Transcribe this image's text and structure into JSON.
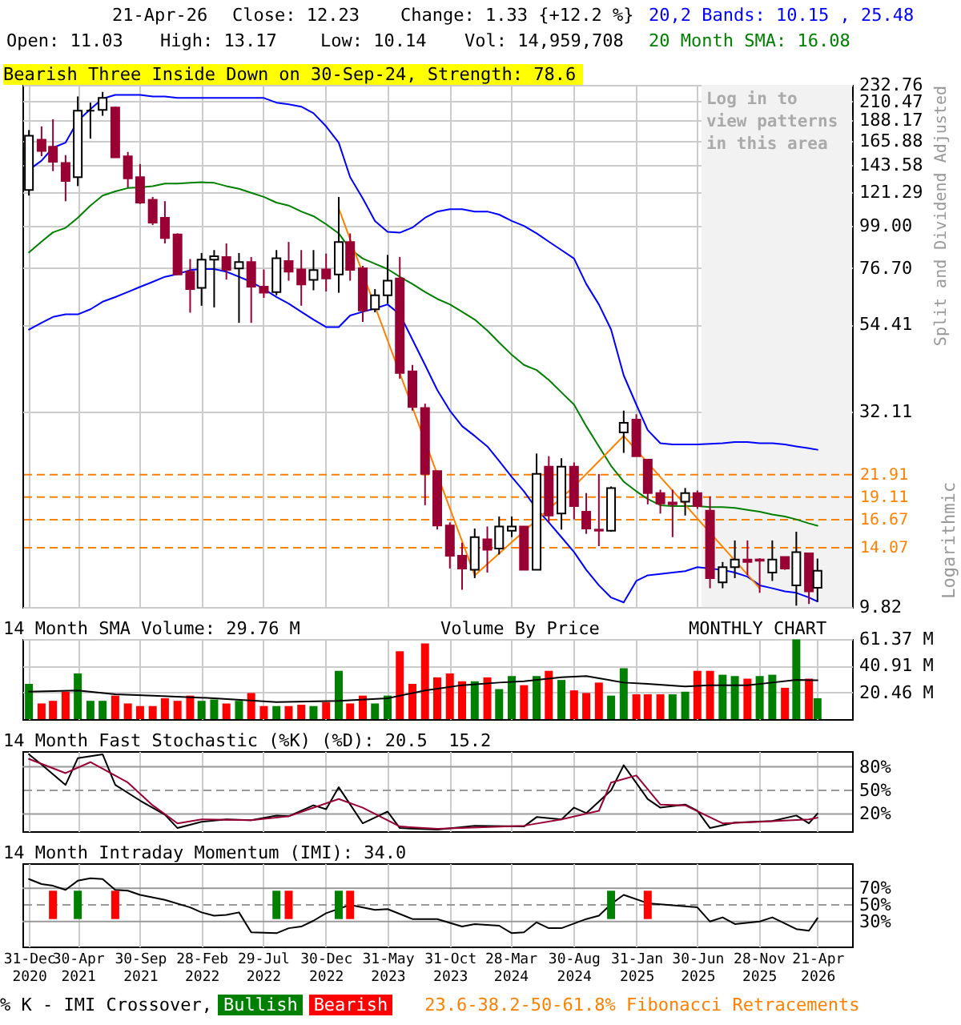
{
  "chart_data": [
    {
      "type": "candlestick",
      "title": "Bearish Three Inside Down on 30-Sep-24, Strength: 78.6",
      "ylabel": "Split and Dividend Adjusted",
      "annotations": [
        "21-Apr-26",
        "Close: 12.23",
        "Change: 1.33 {+12.2 %}",
        "Open: 11.03",
        "High: 13.17",
        "Low: 10.14",
        "Vol: 14,959,708",
        "Logarithmic",
        "23.6-38.2-50-61.8% Fibonacci Retracements"
      ],
      "x": [
        "2020-12-31",
        "2021-01-31",
        "2021-02-28",
        "2021-03-31",
        "2021-04-30",
        "2021-05-31",
        "2021-06-30",
        "2021-07-31",
        "2021-08-31",
        "2021-09-30",
        "2021-10-31",
        "2021-11-30",
        "2021-12-31",
        "2022-01-31",
        "2022-02-28",
        "2022-03-31",
        "2022-04-30",
        "2022-05-31",
        "2022-06-30",
        "2022-07-31",
        "2022-08-31",
        "2022-09-30",
        "2022-10-31",
        "2022-11-30",
        "2022-12-31",
        "2023-01-31",
        "2023-02-28",
        "2023-03-31",
        "2023-04-30",
        "2023-05-31",
        "2023-06-30",
        "2023-07-31",
        "2023-08-31",
        "2023-09-30",
        "2023-10-31",
        "2023-11-30",
        "2023-12-31",
        "2024-01-31",
        "2024-02-29",
        "2024-03-31",
        "2024-04-30",
        "2024-05-31",
        "2024-06-30",
        "2024-07-31",
        "2024-08-31",
        "2024-09-30",
        "2024-10-31",
        "2024-11-30",
        "2024-12-31",
        "2025-01-31",
        "2025-02-28",
        "2025-03-31",
        "2025-04-30",
        "2025-05-31",
        "2025-06-30",
        "2025-07-31",
        "2025-08-31",
        "2025-09-30",
        "2025-10-31",
        "2025-11-30",
        "2025-12-31",
        "2026-01-31",
        "2026-02-28",
        "2026-03-31",
        "2026-04-21"
      ],
      "ohlc": [
        [
          123,
          177,
          119,
          171
        ],
        [
          167,
          181,
          151,
          156
        ],
        [
          160,
          189,
          138,
          146
        ],
        [
          145,
          152,
          115,
          130
        ],
        [
          133,
          217,
          126,
          199
        ],
        [
          199,
          209,
          168,
          199
        ],
        [
          200,
          223,
          193,
          215
        ],
        [
          203,
          204,
          150,
          150
        ],
        [
          151,
          155,
          125,
          132
        ],
        [
          133,
          144,
          113,
          114
        ],
        [
          116,
          118,
          99.5,
          101
        ],
        [
          104,
          115,
          89,
          92
        ],
        [
          94,
          94.6,
          73.7,
          73.7
        ],
        [
          75,
          81,
          58.5,
          67.5
        ],
        [
          68,
          84,
          61,
          80.7
        ],
        [
          80.7,
          85.5,
          60.4,
          82.4
        ],
        [
          82,
          89,
          71.5,
          75.8
        ],
        [
          76.5,
          84,
          55,
          79.5
        ],
        [
          79.5,
          82,
          55,
          68.5
        ],
        [
          68.5,
          76,
          64,
          66
        ],
        [
          66.3,
          85.5,
          65,
          81.4
        ],
        [
          80,
          89.8,
          71,
          75
        ],
        [
          76,
          85.5,
          61,
          69.4
        ],
        [
          71.4,
          85.5,
          67,
          75.7
        ],
        [
          76,
          83.7,
          66.5,
          72
        ],
        [
          73.7,
          118,
          66,
          89.8
        ],
        [
          89.8,
          94.6,
          71,
          75.8
        ],
        [
          76.6,
          77.7,
          55.3,
          59.3
        ],
        [
          59.7,
          67.5,
          58.6,
          65
        ],
        [
          65,
          83,
          61.8,
          71
        ],
        [
          72,
          82,
          39.2,
          40.6
        ],
        [
          41,
          42.6,
          32.3,
          33
        ],
        [
          32.8,
          33.7,
          18.2,
          22
        ],
        [
          22.4,
          22.4,
          15.7,
          16.1
        ],
        [
          16.1,
          16.4,
          12.4,
          13.4
        ],
        [
          13.4,
          14.5,
          10.9,
          12.4
        ],
        [
          12.3,
          15.8,
          11.7,
          15.0
        ],
        [
          14.8,
          16.0,
          12.1,
          13.9
        ],
        [
          14.0,
          17.0,
          13.5,
          16.0
        ],
        [
          15.6,
          17.0,
          15.0,
          16.0
        ],
        [
          16.0,
          16.0,
          12.3,
          12.3
        ],
        [
          12.3,
          24.9,
          12.3,
          22.0
        ],
        [
          23.0,
          24.5,
          16.4,
          17.1
        ],
        [
          17.3,
          24.2,
          15.7,
          23.0
        ],
        [
          23.0,
          23.6,
          16.7,
          18.1
        ],
        [
          17.5,
          19.6,
          15.3,
          15.8
        ],
        [
          15.7,
          22.0,
          14.2,
          15.6
        ],
        [
          15.6,
          20.4,
          15.5,
          20.2
        ],
        [
          28.3,
          32.3,
          25.0,
          30.0
        ],
        [
          30.6,
          31.6,
          24.5,
          24.5
        ],
        [
          24.0,
          24.0,
          18.3,
          19.6
        ],
        [
          19.6,
          20.0,
          17.3,
          18.4
        ],
        [
          18.5,
          20.0,
          15.0,
          18.3
        ],
        [
          18.6,
          20.2,
          17.1,
          19.6
        ],
        [
          19.6,
          19.9,
          17.8,
          18.1
        ],
        [
          17.6,
          19.2,
          11.0,
          11.7
        ],
        [
          11.4,
          12.9,
          11.0,
          12.5
        ],
        [
          12.5,
          14.7,
          11.7,
          13.1
        ],
        [
          13.1,
          14.7,
          11.9,
          12.9
        ],
        [
          13.1,
          13.2,
          10.7,
          13.0
        ],
        [
          12.1,
          14.7,
          11.5,
          13.1
        ],
        [
          13.3,
          13.3,
          12.3,
          12.4
        ],
        [
          11.2,
          15.5,
          9.9,
          13.7
        ],
        [
          13.6,
          13.6,
          10.0,
          10.8
        ],
        [
          11.03,
          13.17,
          10.14,
          12.23
        ]
      ],
      "series": [
        {
          "name": "20,2 Bands: 10.15 , 25.48",
          "type": "line",
          "color": "#0000ff",
          "values": [
            139,
            147,
            159,
            164,
            187,
            201,
            214,
            219,
            219,
            219,
            217,
            217,
            215,
            215,
            215,
            215,
            215,
            215,
            215,
            215,
            209,
            207,
            204,
            196,
            181,
            164,
            133,
            117,
            102,
            95.5,
            95,
            98,
            104,
            108,
            109.5,
            109.5,
            108,
            108,
            106,
            102,
            99,
            94.6,
            90,
            85.5,
            81.2,
            69.6,
            61.5,
            52.8,
            40,
            33.5,
            28.7,
            26.5,
            26.3,
            26.3,
            26.3,
            26.4,
            26.5,
            26.7,
            26.7,
            26.5,
            26.5,
            26.3,
            26.0,
            25.7,
            25.48
          ]
        },
        {
          "type": "line",
          "color": "#0000ff",
          "values": [
            52.8,
            55.0,
            57.0,
            57.9,
            57.9,
            59.7,
            62.5,
            64.3,
            66.3,
            68.4,
            70.5,
            72.7,
            73.9,
            75.7,
            76.2,
            76.2,
            75.0,
            72.7,
            70.5,
            67.5,
            64.3,
            61.8,
            58.8,
            56.1,
            53.6,
            53.6,
            57.5,
            58.8,
            60.0,
            61.5,
            57.9,
            49.7,
            42.6,
            36.6,
            32.3,
            29.4,
            27.7,
            26.0,
            23.8,
            21.6,
            19.8,
            17.8,
            16.4,
            15.0,
            13.7,
            12.3,
            11.2,
            10.4,
            10.1,
            11.5,
            11.9,
            12.0,
            12.1,
            12.2,
            12.5,
            12.4,
            12.3,
            12.1,
            11.8,
            11.2,
            11.0,
            10.8,
            10.7,
            10.4,
            10.15
          ]
        },
        {
          "name": "20 Month SMA: 16.08",
          "type": "line",
          "color": "#008000",
          "values": [
            84.3,
            90.0,
            95.2,
            97.8,
            104,
            112,
            119,
            122,
            124.5,
            125,
            126,
            128,
            128,
            128.5,
            129,
            128.5,
            126,
            124,
            121,
            118,
            114,
            112,
            108,
            105,
            100,
            94.6,
            86,
            81.2,
            78.7,
            76.2,
            72.7,
            69.6,
            66.3,
            63.6,
            61.5,
            58.8,
            56.1,
            52.5,
            48.8,
            45.3,
            42.6,
            41.3,
            38.9,
            36.1,
            33.5,
            29.4,
            26.0,
            23.1,
            21.0,
            19.8,
            18.9,
            18.2,
            18.1,
            18.1,
            18.1,
            18.0,
            18.0,
            17.9,
            17.7,
            17.5,
            17.2,
            17.0,
            16.7,
            16.3,
            16.08
          ]
        },
        {
          "type": "line",
          "color": "#ff8000",
          "x": [
            "2023-01-31",
            "2023-12-31",
            "2024-08-31",
            "2024-12-31",
            "2025-11-30"
          ],
          "values": [
            110,
            11.9,
            20.4,
            27.7,
            11.0
          ]
        }
      ],
      "log": true,
      "xlim": [
        "2020-12-15",
        "2026-07-15"
      ],
      "xticks": [
        {
          "value": "2020-12-31",
          "label": null
        },
        {
          "value": "2021-04-30",
          "label": null
        },
        {
          "value": "2021-09-30",
          "label": null
        },
        {
          "value": "2022-02-28",
          "label": null
        },
        {
          "value": "2022-07-29",
          "label": null
        },
        {
          "value": "2022-12-30",
          "label": null
        },
        {
          "value": "2023-05-31",
          "label": null
        },
        {
          "value": "2023-10-31",
          "label": null
        },
        {
          "value": "2024-03-28",
          "label": null
        },
        {
          "value": "2024-08-30",
          "label": null
        },
        {
          "value": "2025-01-31",
          "label": null
        },
        {
          "value": "2025-06-30",
          "label": null
        },
        {
          "value": "2025-11-28",
          "label": null
        },
        {
          "value": "2026-04-21",
          "label": null
        }
      ],
      "ylim": [
        9.82,
        232.76
      ],
      "yticks": [
        9.82,
        32.11,
        54.41,
        {
          "value": 76.7,
          "label": "76.70"
        },
        {
          "value": 99,
          "label": "99.00"
        },
        121.29,
        143.58,
        165.88,
        188.17,
        210.47,
        232.76
      ],
      "grid": true,
      "tick_labels": "y",
      "legend": "top right",
      "ref_lines": [
        {
          "axis": "y",
          "value": 21.91,
          "label": "21.91",
          "color": "#ff8000",
          "line_style": "dashed"
        },
        {
          "axis": "y",
          "value": 19.11,
          "label": "19.11",
          "color": "#ff8000",
          "line_style": "dashed"
        },
        {
          "axis": "y",
          "value": 16.67,
          "label": "16.67",
          "color": "#ff8000",
          "line_style": "dashed"
        },
        {
          "axis": "y",
          "value": 14.07,
          "label": "14.07",
          "color": "#ff8000",
          "line_style": "dashed"
        }
      ],
      "bands": [
        {
          "axis": "x",
          "from": "2025-07-10",
          "to": "2026-07-15",
          "label": "Log in to view patterns in this area",
          "color": "#f2f2f2"
        }
      ]
    },
    {
      "type": "bar",
      "title": "14 Month SMA Volume: 29.76 M",
      "annotations": [
        "Volume By Price",
        "MONTHLY CHART"
      ],
      "x": [
        "2020-12-31",
        "2021-01-31",
        "2021-02-28",
        "2021-03-31",
        "2021-04-30",
        "2021-05-31",
        "2021-06-30",
        "2021-07-31",
        "2021-08-31",
        "2021-09-30",
        "2021-10-31",
        "2021-11-30",
        "2021-12-31",
        "2022-01-31",
        "2022-02-28",
        "2022-03-31",
        "2022-04-30",
        "2022-05-31",
        "2022-06-30",
        "2022-07-31",
        "2022-08-31",
        "2022-09-30",
        "2022-10-31",
        "2022-11-30",
        "2022-12-31",
        "2023-01-31",
        "2023-02-28",
        "2023-03-31",
        "2023-04-30",
        "2023-05-31",
        "2023-06-30",
        "2023-07-31",
        "2023-08-31",
        "2023-09-30",
        "2023-10-31",
        "2023-11-30",
        "2023-12-31",
        "2024-01-31",
        "2024-02-29",
        "2024-03-31",
        "2024-04-30",
        "2024-05-31",
        "2024-06-30",
        "2024-07-31",
        "2024-08-31",
        "2024-09-30",
        "2024-10-31",
        "2024-11-30",
        "2024-12-31",
        "2025-01-31",
        "2025-02-28",
        "2025-03-31",
        "2025-04-30",
        "2025-05-31",
        "2025-06-30",
        "2025-07-31",
        "2025-08-31",
        "2025-09-30",
        "2025-10-31",
        "2025-11-30",
        "2025-12-31",
        "2026-01-31",
        "2026-02-28",
        "2026-03-31",
        "2026-04-21"
      ],
      "series": [
        {
          "type": "bar",
          "values": [
            27,
            12,
            14,
            21,
            35,
            14,
            14,
            18,
            12,
            10,
            10,
            16,
            14,
            18,
            14,
            15,
            12,
            14,
            20,
            10,
            10,
            10,
            11,
            10,
            13,
            37,
            12,
            18,
            12,
            18,
            52,
            27,
            58,
            32,
            35,
            29,
            29,
            32,
            23,
            33,
            26,
            33,
            37,
            30,
            22,
            20,
            28,
            18,
            39,
            19,
            19,
            19,
            19,
            21,
            37,
            37,
            34,
            33,
            31,
            33,
            34,
            24,
            61,
            31,
            16
          ],
          "colors": [
            "#008000",
            "#ff0000",
            "#ff0000",
            "#ff0000",
            "#008000",
            "#008000",
            "#008000",
            "#ff0000",
            "#ff0000",
            "#ff0000",
            "#ff0000",
            "#ff0000",
            "#ff0000",
            "#ff0000",
            "#008000",
            "#008000",
            "#ff0000",
            "#008000",
            "#ff0000",
            "#ff0000",
            "#008000",
            "#ff0000",
            "#ff0000",
            "#008000",
            "#ff0000",
            "#008000",
            "#ff0000",
            "#ff0000",
            "#008000",
            "#008000",
            "#ff0000",
            "#ff0000",
            "#ff0000",
            "#ff0000",
            "#ff0000",
            "#ff0000",
            "#008000",
            "#ff0000",
            "#008000",
            "#008000",
            "#ff0000",
            "#008000",
            "#ff0000",
            "#008000",
            "#ff0000",
            "#ff0000",
            "#ff0000",
            "#008000",
            "#008000",
            "#ff0000",
            "#ff0000",
            "#ff0000",
            "#008000",
            "#008000",
            "#ff0000",
            "#ff0000",
            "#008000",
            "#008000",
            "#ff0000",
            "#008000",
            "#008000",
            "#ff0000",
            "#008000",
            "#ff0000",
            "#008000"
          ]
        },
        {
          "type": "line",
          "color": "#000000",
          "x": [
            "2020-12-31",
            "2021-04-30",
            "2021-07-31",
            "2021-10-31",
            "2022-03-31",
            "2022-08-31",
            "2023-01-31",
            "2023-05-31",
            "2023-08-31",
            "2023-11-30",
            "2024-02-29",
            "2024-04-30",
            "2024-07-31",
            "2024-09-30",
            "2024-12-31",
            "2025-02-28",
            "2025-05-31",
            "2025-07-31",
            "2025-10-31",
            "2025-12-31",
            "2026-02-28",
            "2026-04-21"
          ],
          "values": [
            21,
            22,
            19,
            18,
            16,
            13,
            14,
            16,
            22,
            26,
            28,
            29,
            32,
            33,
            28,
            27,
            25,
            26,
            26,
            28,
            30,
            29.76
          ]
        }
      ],
      "xlim": [
        "2020-12-15",
        "2026-07-15"
      ],
      "xticks": [
        {
          "value": "2020-12-31",
          "label": null
        },
        {
          "value": "2021-04-30",
          "label": null
        },
        {
          "value": "2021-09-30",
          "label": null
        },
        {
          "value": "2022-02-28",
          "label": null
        },
        {
          "value": "2022-07-29",
          "label": null
        },
        {
          "value": "2022-12-30",
          "label": null
        },
        {
          "value": "2023-05-31",
          "label": null
        },
        {
          "value": "2023-10-31",
          "label": null
        },
        {
          "value": "2024-03-28",
          "label": null
        },
        {
          "value": "2024-08-30",
          "label": null
        },
        {
          "value": "2025-01-31",
          "label": null
        },
        {
          "value": "2025-06-30",
          "label": null
        },
        {
          "value": "2025-11-28",
          "label": null
        },
        {
          "value": "2026-04-21",
          "label": null
        }
      ],
      "ylim": [
        0,
        61.37
      ],
      "yticks": [
        {
          "value": 20.46,
          "label": "20.46 M"
        },
        {
          "value": 40.91,
          "label": "40.91 M"
        },
        {
          "value": 61.37,
          "label": "61.37 M"
        }
      ],
      "grid": true,
      "tick_labels": "y"
    },
    {
      "type": "line",
      "title": "14 Month Fast Stochastic (%K) (%D): 20.5  15.2",
      "series": [
        {
          "type": "line",
          "color": "#000000",
          "x": [
            "2020-12-31",
            "2021-01-31",
            "2021-03-31",
            "2021-04-30",
            "2021-06-30",
            "2021-07-31",
            "2021-09-30",
            "2021-11-30",
            "2021-12-31",
            "2022-02-28",
            "2022-04-30",
            "2022-06-30",
            "2022-08-31",
            "2022-09-30",
            "2022-11-30",
            "2022-12-31",
            "2023-01-31",
            "2023-03-31",
            "2023-05-31",
            "2023-06-30",
            "2023-09-30",
            "2023-12-31",
            "2024-04-30",
            "2024-05-31",
            "2024-07-31",
            "2024-08-31",
            "2024-09-30",
            "2024-11-30",
            "2024-12-31",
            "2025-02-28",
            "2025-03-31",
            "2025-05-31",
            "2025-06-30",
            "2025-07-31",
            "2025-09-30",
            "2025-12-31",
            "2026-02-28",
            "2026-03-31",
            "2026-04-21"
          ],
          "values": [
            96,
            83,
            57,
            91,
            96,
            57,
            37,
            19,
            2,
            10,
            13,
            12,
            18,
            17,
            31,
            26,
            54,
            8,
            23,
            2,
            0,
            5,
            4,
            16,
            13,
            28,
            21,
            50,
            82,
            39,
            28,
            32,
            24,
            2,
            9,
            11,
            18,
            8,
            20.5
          ]
        },
        {
          "type": "line",
          "color": "#990033",
          "x": [
            "2020-12-31",
            "2021-03-31",
            "2021-05-31",
            "2021-08-31",
            "2021-10-31",
            "2021-12-31",
            "2022-02-28",
            "2022-06-30",
            "2022-09-30",
            "2023-01-31",
            "2023-03-31",
            "2023-06-30",
            "2023-09-30",
            "2024-04-30",
            "2024-07-31",
            "2024-10-31",
            "2024-11-30",
            "2025-01-31",
            "2025-03-31",
            "2025-05-31",
            "2025-08-31",
            "2025-11-30",
            "2026-03-31",
            "2026-04-21"
          ],
          "values": [
            90,
            72,
            86,
            60,
            31,
            8,
            13,
            12,
            17,
            39,
            28,
            4,
            1,
            5,
            13,
            24,
            60,
            69,
            32,
            31,
            8,
            10,
            13,
            15.2
          ]
        }
      ],
      "xlim": [
        "2020-12-15",
        "2026-07-15"
      ],
      "xticks": [
        {
          "value": "2020-12-31",
          "label": null
        },
        {
          "value": "2021-04-30",
          "label": null
        },
        {
          "value": "2021-09-30",
          "label": null
        },
        {
          "value": "2022-02-28",
          "label": null
        },
        {
          "value": "2022-07-29",
          "label": null
        },
        {
          "value": "2022-12-30",
          "label": null
        },
        {
          "value": "2023-05-31",
          "label": null
        },
        {
          "value": "2023-10-31",
          "label": null
        },
        {
          "value": "2024-03-28",
          "label": null
        },
        {
          "value": "2024-08-30",
          "label": null
        },
        {
          "value": "2025-01-31",
          "label": null
        },
        {
          "value": "2025-06-30",
          "label": null
        },
        {
          "value": "2025-11-28",
          "label": null
        },
        {
          "value": "2026-04-21",
          "label": null
        }
      ],
      "ylim": [
        -2,
        100
      ],
      "yticks": [
        {
          "value": 20,
          "label": "20%"
        },
        {
          "value": 50,
          "label": "50%"
        },
        {
          "value": 80,
          "label": "80%"
        }
      ],
      "grid": "x",
      "tick_labels": "y",
      "ref_lines": [
        {
          "axis": "y",
          "value": 20,
          "color": "#999999"
        },
        {
          "axis": "y",
          "value": 50,
          "color": "#999999",
          "line_style": "dashed"
        },
        {
          "axis": "y",
          "value": 80,
          "color": "#999999"
        }
      ]
    },
    {
      "type": "line",
      "title": "14 Month Intraday Momentum (IMI): 34.0",
      "legend": "bottom",
      "legend_title": "% K - IMI Crossover,",
      "series": [
        {
          "type": "line",
          "color": "#000000",
          "x": [
            "2020-12-31",
            "2021-01-31",
            "2021-02-28",
            "2021-03-31",
            "2021-04-30",
            "2021-05-31",
            "2021-06-30",
            "2021-07-31",
            "2021-08-31",
            "2021-09-30",
            "2021-11-30",
            "2022-01-31",
            "2022-02-28",
            "2022-03-31",
            "2022-04-30",
            "2022-05-31",
            "2022-06-30",
            "2022-08-31",
            "2022-09-30",
            "2022-10-31",
            "2022-11-30",
            "2022-12-31",
            "2023-02-28",
            "2023-04-30",
            "2023-05-31",
            "2023-07-31",
            "2023-09-30",
            "2023-11-30",
            "2023-12-31",
            "2024-02-29",
            "2024-03-31",
            "2024-04-30",
            "2024-05-31",
            "2024-06-30",
            "2024-07-31",
            "2024-09-30",
            "2024-10-31",
            "2024-11-30",
            "2024-12-31",
            "2025-02-28",
            "2025-06-30",
            "2025-07-31",
            "2025-08-31",
            "2025-09-30",
            "2025-11-30",
            "2025-12-31",
            "2026-02-28",
            "2026-03-31",
            "2026-04-21"
          ],
          "values": [
            81,
            75,
            73,
            68,
            79,
            82,
            81,
            68,
            67,
            62,
            56,
            47,
            41,
            37,
            38,
            41,
            17,
            16,
            22,
            24,
            31,
            40,
            50,
            44,
            45,
            33,
            33,
            24,
            27,
            25,
            16,
            17,
            29,
            22,
            22,
            33,
            37,
            51,
            62,
            52,
            47,
            30,
            35,
            27,
            30,
            35,
            21,
            19,
            34.0
          ]
        },
        {
          "name": "Bullish",
          "type": "bar",
          "color": "#008000",
          "x": [
            "2021-04-30",
            "2022-08-31",
            "2023-01-31",
            "2024-11-30"
          ],
          "base": [
            33,
            33,
            33,
            33
          ],
          "values": [
            34,
            34,
            34,
            34
          ]
        },
        {
          "name": "Bearish",
          "type": "bar",
          "color": "#ff0000",
          "x": [
            "2021-02-28",
            "2021-07-31",
            "2022-09-30",
            "2023-02-28",
            "2025-02-28"
          ],
          "base": [
            33,
            33,
            33,
            33,
            33
          ],
          "values": [
            34,
            34,
            34,
            34,
            34
          ]
        }
      ],
      "xlim": [
        "2020-12-15",
        "2026-07-15"
      ],
      "xticks": [
        {
          "value": "2020-12-31",
          "label": "31-Dec 2020"
        },
        {
          "value": "2021-04-30",
          "label": "30-Apr 2021"
        },
        {
          "value": "2021-09-30",
          "label": "30-Sep 2021"
        },
        {
          "value": "2022-02-28",
          "label": "28-Feb 2022"
        },
        {
          "value": "2022-07-29",
          "label": "29-Jul 2022"
        },
        {
          "value": "2022-12-30",
          "label": "30-Dec 2022"
        },
        {
          "value": "2023-05-31",
          "label": "31-May 2023"
        },
        {
          "value": "2023-10-31",
          "label": "31-Oct 2023"
        },
        {
          "value": "2024-03-28",
          "label": "28-Mar 2024"
        },
        {
          "value": "2024-08-30",
          "label": "30-Aug 2024"
        },
        {
          "value": "2025-01-31",
          "label": "31-Jan 2025"
        },
        {
          "value": "2025-06-30",
          "label": "30-Jun 2025"
        },
        {
          "value": "2025-11-28",
          "label": "28-Nov 2025"
        },
        {
          "value": "2026-04-21",
          "label": "21-Apr 2026"
        }
      ],
      "ylim": [
        0,
        100
      ],
      "yticks": [
        {
          "value": 30,
          "label": "30%"
        },
        {
          "value": 50,
          "label": "50%"
        },
        {
          "value": 70,
          "label": "70%"
        }
      ],
      "grid": "x",
      "ref_lines": [
        {
          "axis": "y",
          "value": 30,
          "color": "#999999"
        },
        {
          "axis": "y",
          "value": 50,
          "color": "#999999",
          "line_style": "dashed"
        },
        {
          "axis": "y",
          "value": 70,
          "color": "#999999"
        }
      ]
    }
  ]
}
